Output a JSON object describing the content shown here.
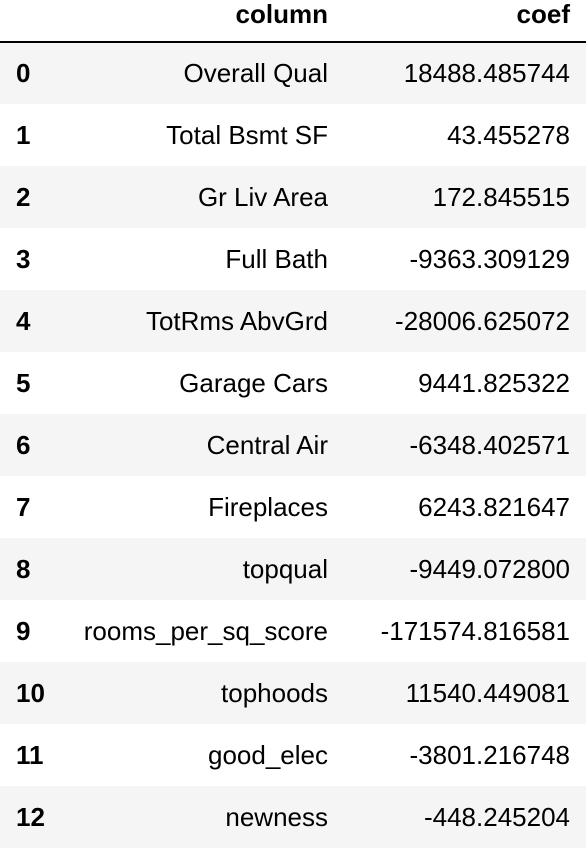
{
  "table": {
    "headers": {
      "index": "",
      "column": "column",
      "coef": "coef"
    },
    "rows": [
      {
        "index": "0",
        "column": "Overall Qual",
        "coef": "18488.485744"
      },
      {
        "index": "1",
        "column": "Total Bsmt SF",
        "coef": "43.455278"
      },
      {
        "index": "2",
        "column": "Gr Liv Area",
        "coef": "172.845515"
      },
      {
        "index": "3",
        "column": "Full Bath",
        "coef": "-9363.309129"
      },
      {
        "index": "4",
        "column": "TotRms AbvGrd",
        "coef": "-28006.625072"
      },
      {
        "index": "5",
        "column": "Garage Cars",
        "coef": "9441.825322"
      },
      {
        "index": "6",
        "column": "Central Air",
        "coef": "-6348.402571"
      },
      {
        "index": "7",
        "column": "Fireplaces",
        "coef": "6243.821647"
      },
      {
        "index": "8",
        "column": "topqual",
        "coef": "-9449.072800"
      },
      {
        "index": "9",
        "column": "rooms_per_sq_score",
        "coef": "-171574.816581"
      },
      {
        "index": "10",
        "column": "tophoods",
        "coef": "11540.449081"
      },
      {
        "index": "11",
        "column": "good_elec",
        "coef": "-3801.216748"
      },
      {
        "index": "12",
        "column": "newness",
        "coef": "-448.245204"
      }
    ]
  }
}
